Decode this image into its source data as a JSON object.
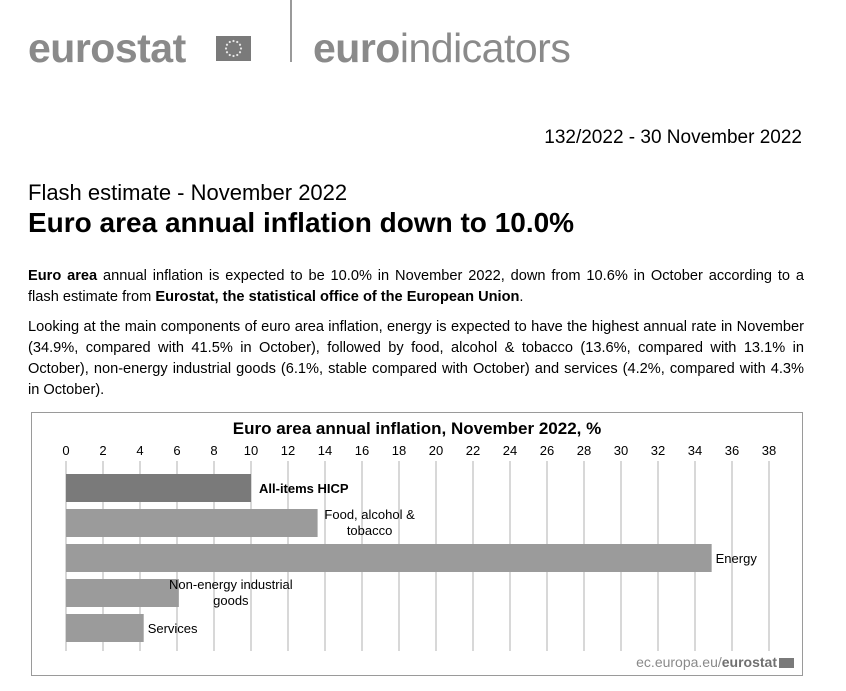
{
  "header": {
    "brand_left": "eurostat",
    "brand_right_prefix": "euro",
    "brand_right_suffix": "indicators",
    "flag_icon": "eu-flag-icon"
  },
  "release": {
    "text": "132/2022  -  30 November 2022"
  },
  "subtitle": "Flash estimate - November 2022",
  "headline": "Euro area annual inflation down to 10.0%",
  "paragraph1": {
    "bold1": "Euro area",
    "text1": " annual inflation is expected to be 10.0% in November 2022, down from 10.6% in October according to a flash estimate from ",
    "bold2": "Eurostat, the statistical office of the European Union",
    "text2": "."
  },
  "paragraph2": "Looking at the main components of euro area inflation, energy is expected to have the highest annual rate in November (34.9%, compared with 41.5% in October), followed by food, alcohol & tobacco (13.6%, compared with 13.1% in October), non-energy industrial goods (6.1%, stable compared with October) and services (4.2%, compared with 4.3% in October).",
  "chart_data": {
    "type": "bar",
    "orientation": "horizontal",
    "title": "Euro area annual inflation, November 2022, %",
    "categories": [
      "All-items HICP",
      "Food, alcohol & tobacco",
      "Energy",
      "Non-energy industrial goods",
      "Services"
    ],
    "label_lines": [
      [
        "All-items HICP"
      ],
      [
        "Food, alcohol &",
        "tobacco"
      ],
      [
        "Energy"
      ],
      [
        "Non-energy industrial",
        "goods"
      ],
      [
        "Services"
      ]
    ],
    "values": [
      10.0,
      13.6,
      34.9,
      6.1,
      4.2
    ],
    "xlim": [
      0,
      38
    ],
    "ticks": [
      0,
      2,
      4,
      6,
      8,
      10,
      12,
      14,
      16,
      18,
      20,
      22,
      24,
      26,
      28,
      30,
      32,
      34,
      36,
      38
    ],
    "grid": true,
    "bar_colors": [
      "#7a7a7a",
      "#9b9b9b",
      "#9b9b9b",
      "#9b9b9b",
      "#9b9b9b"
    ],
    "axis_position": "top"
  },
  "credit": {
    "prefix": "ec.europa.eu/",
    "brand": "eurostat"
  }
}
